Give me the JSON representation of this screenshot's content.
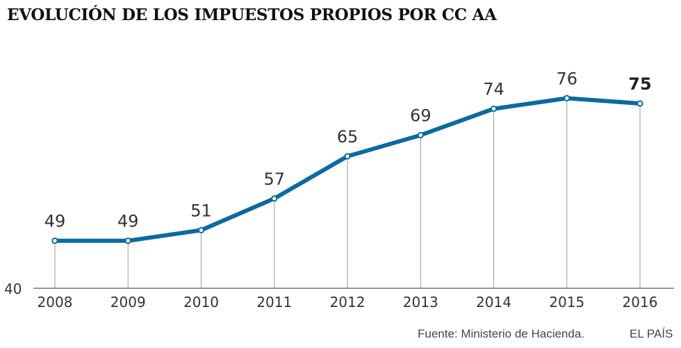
{
  "chart_data": {
    "type": "line",
    "title": "EVOLUCIÓN DE LOS IMPUESTOS PROPIOS POR CC AA",
    "x": [
      "2008",
      "2009",
      "2010",
      "2011",
      "2012",
      "2013",
      "2014",
      "2015",
      "2016"
    ],
    "values": [
      49,
      49,
      51,
      57,
      65,
      69,
      74,
      76,
      75
    ],
    "data_labels": [
      "49",
      "49",
      "51",
      "57",
      "65",
      "69",
      "74",
      "76",
      "75"
    ],
    "highlight_last": true,
    "y_baseline": 40,
    "y_baseline_label": "40",
    "grid": false,
    "drop_lines": true,
    "line_color": "#0a6aa1"
  },
  "footer": {
    "source": "Fuente: Ministerio de Hacienda.",
    "brand": "EL PAÍS"
  }
}
